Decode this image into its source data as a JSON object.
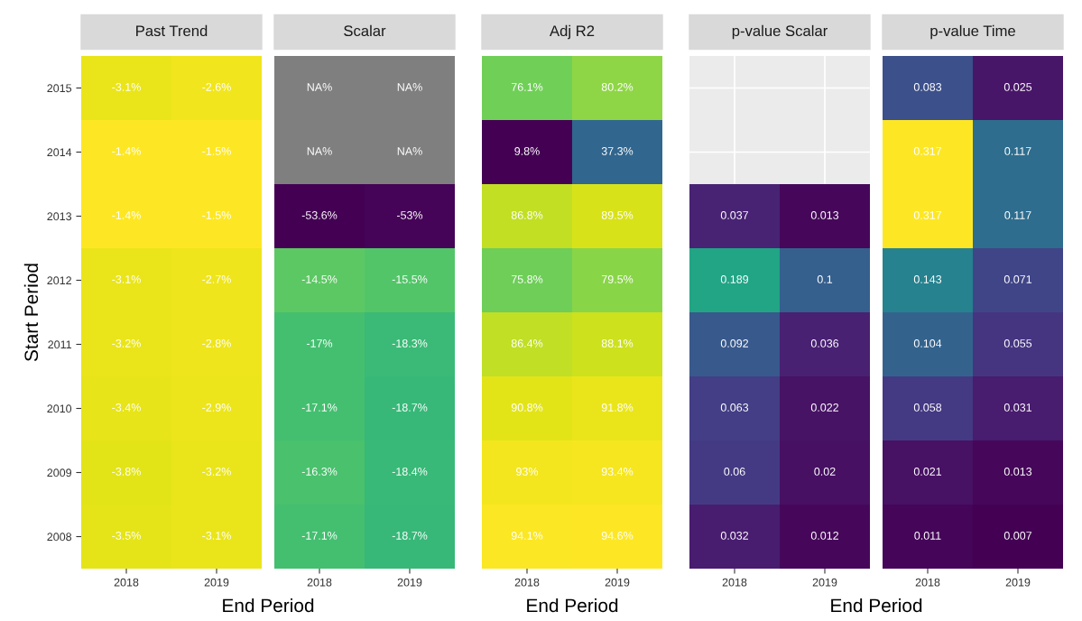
{
  "chart_data": [
    {
      "type": "heatmap",
      "title": "Past Trend",
      "xlabel": "End Period",
      "ylabel": "Start Period",
      "categories": [
        "2018",
        "2019"
      ],
      "y_categories": [
        "2015",
        "2014",
        "2013",
        "2012",
        "2011",
        "2010",
        "2009",
        "2008"
      ],
      "cells": [
        [
          -3.1,
          -2.6
        ],
        [
          -1.4,
          -1.5
        ],
        [
          -1.4,
          -1.5
        ],
        [
          -3.1,
          -2.7
        ],
        [
          -3.2,
          -2.8
        ],
        [
          -3.4,
          -2.9
        ],
        [
          -3.8,
          -3.2
        ],
        [
          -3.5,
          -3.1
        ]
      ],
      "cell_labels": [
        [
          "-3.1%",
          "-2.6%"
        ],
        [
          "-1.4%",
          "-1.5%"
        ],
        [
          "-1.4%",
          "-1.5%"
        ],
        [
          "-3.1%",
          "-2.7%"
        ],
        [
          "-3.2%",
          "-2.8%"
        ],
        [
          "-3.4%",
          "-2.9%"
        ],
        [
          "-3.8%",
          "-3.2%"
        ],
        [
          "-3.5%",
          "-3.1%"
        ]
      ],
      "tick_labels": "xy"
    },
    {
      "type": "heatmap",
      "title": "Scalar",
      "categories": [
        "2018",
        "2019"
      ],
      "y_categories": [
        "2015",
        "2014",
        "2013",
        "2012",
        "2011",
        "2010",
        "2009",
        "2008"
      ],
      "cells": [
        [
          null,
          null
        ],
        [
          null,
          null
        ],
        [
          -53.6,
          -53
        ],
        [
          -14.5,
          -15.5
        ],
        [
          -17,
          -18.3
        ],
        [
          -17.1,
          -18.7
        ],
        [
          -16.3,
          -18.4
        ],
        [
          -17.1,
          -18.7
        ]
      ],
      "cell_labels": [
        [
          "NA%",
          "NA%"
        ],
        [
          "NA%",
          "NA%"
        ],
        [
          "-53.6%",
          "-53%"
        ],
        [
          "-14.5%",
          "-15.5%"
        ],
        [
          "-17%",
          "-18.3%"
        ],
        [
          "-17.1%",
          "-18.7%"
        ],
        [
          "-16.3%",
          "-18.4%"
        ],
        [
          "-17.1%",
          "-18.7%"
        ]
      ],
      "tick_labels": "x"
    },
    {
      "type": "heatmap",
      "title": "Adj R2",
      "xlabel": "End Period",
      "categories": [
        "2018",
        "2019"
      ],
      "y_categories": [
        "2015",
        "2014",
        "2013",
        "2012",
        "2011",
        "2010",
        "2009",
        "2008"
      ],
      "cells": [
        [
          76.1,
          80.2
        ],
        [
          9.8,
          37.3
        ],
        [
          86.8,
          89.5
        ],
        [
          75.8,
          79.5
        ],
        [
          86.4,
          88.1
        ],
        [
          90.8,
          91.8
        ],
        [
          93,
          93.4
        ],
        [
          94.1,
          94.6
        ]
      ],
      "cell_labels": [
        [
          "76.1%",
          "80.2%"
        ],
        [
          "9.8%",
          "37.3%"
        ],
        [
          "86.8%",
          "89.5%"
        ],
        [
          "75.8%",
          "79.5%"
        ],
        [
          "86.4%",
          "88.1%"
        ],
        [
          "90.8%",
          "91.8%"
        ],
        [
          "93%",
          "93.4%"
        ],
        [
          "94.1%",
          "94.6%"
        ]
      ],
      "tick_labels": "x"
    },
    {
      "type": "heatmap",
      "title": "p-value Scalar",
      "xlabel": "End Period",
      "categories": [
        "2018",
        "2019"
      ],
      "y_categories": [
        "2015",
        "2014",
        "2013",
        "2012",
        "2011",
        "2010",
        "2009",
        "2008"
      ],
      "cells": [
        [
          null,
          null
        ],
        [
          null,
          null
        ],
        [
          0.037,
          0.013
        ],
        [
          0.189,
          0.1
        ],
        [
          0.092,
          0.036
        ],
        [
          0.063,
          0.022
        ],
        [
          0.06,
          0.02
        ],
        [
          0.032,
          0.012
        ]
      ],
      "data_labels": true,
      "grid": true,
      "tick_labels": "x"
    },
    {
      "type": "heatmap",
      "title": "p-value Time",
      "categories": [
        "2018",
        "2019"
      ],
      "y_categories": [
        "2015",
        "2014",
        "2013",
        "2012",
        "2011",
        "2010",
        "2009",
        "2008"
      ],
      "cells": [
        [
          0.083,
          0.025
        ],
        [
          0.317,
          0.117
        ],
        [
          0.317,
          0.117
        ],
        [
          0.143,
          0.071
        ],
        [
          0.104,
          0.055
        ],
        [
          0.058,
          0.031
        ],
        [
          0.021,
          0.013
        ],
        [
          0.011,
          0.007
        ]
      ],
      "data_labels": true,
      "tick_labels": "x"
    }
  ]
}
